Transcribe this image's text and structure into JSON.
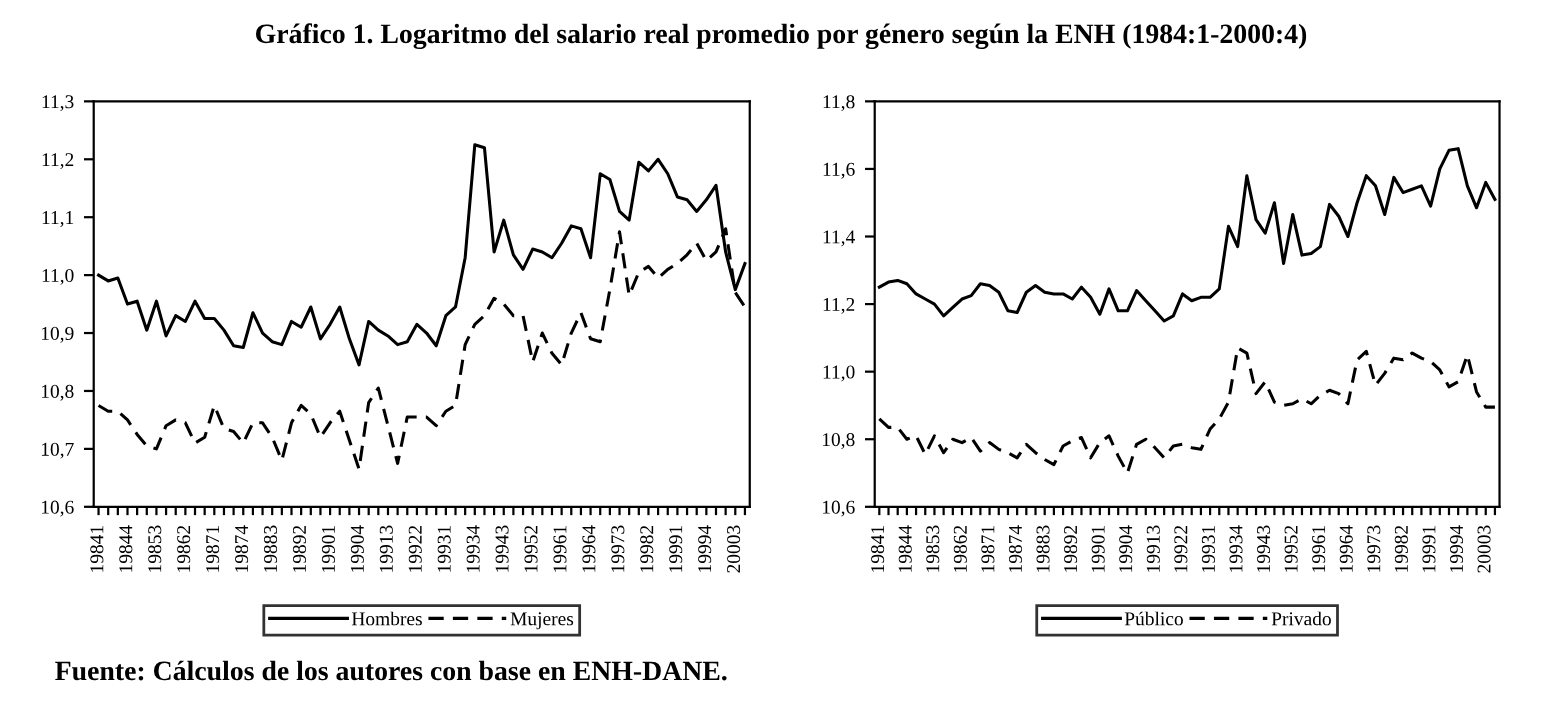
{
  "chart_data": [
    {
      "type": "line",
      "title": "Gráfico 1. Logaritmo del salario real promedio por género según la ENH (1984:1-2000:4)",
      "annotations": [
        "Fuente: Cálculos de los autores con base en ENH-DANE."
      ],
      "categories": [
        "19841",
        null,
        null,
        "19844",
        null,
        null,
        "19853",
        null,
        null,
        "19862",
        null,
        null,
        "19871",
        null,
        null,
        "19874",
        null,
        null,
        "19883",
        null,
        null,
        "19892",
        null,
        null,
        "19901",
        null,
        null,
        "19904",
        null,
        null,
        "19913",
        null,
        null,
        "19922",
        null,
        null,
        "19931",
        null,
        null,
        "19934",
        null,
        null,
        "19943",
        null,
        null,
        "19952",
        null,
        null,
        "19961",
        null,
        null,
        "19964",
        null,
        null,
        "19973",
        null,
        null,
        "19982",
        null,
        null,
        "19991",
        null,
        null,
        "19994",
        null,
        null,
        "20003",
        null
      ],
      "series": [
        {
          "name": "Hombres",
          "color": "#000000",
          "line_style": "solid",
          "values": [
            11.0,
            10.99,
            10.995,
            10.95,
            10.955,
            10.905,
            10.955,
            10.895,
            10.93,
            10.92,
            10.955,
            10.925,
            10.925,
            10.905,
            10.878,
            10.875,
            10.935,
            10.9,
            10.885,
            10.88,
            10.92,
            10.91,
            10.945,
            10.89,
            10.915,
            10.945,
            10.89,
            10.845,
            10.92,
            10.905,
            10.895,
            10.88,
            10.885,
            10.915,
            10.9,
            10.878,
            10.93,
            10.945,
            11.03,
            11.225,
            11.22,
            11.04,
            11.095,
            11.035,
            11.01,
            11.045,
            11.04,
            11.03,
            11.055,
            11.085,
            11.08,
            11.03,
            11.175,
            11.165,
            11.11,
            11.095,
            11.195,
            11.18,
            11.2,
            11.175,
            11.135,
            11.13,
            11.11,
            11.13,
            11.155,
            11.04,
            10.975,
            11.02
          ]
        },
        {
          "name": "Mujeres",
          "color": "#000000",
          "line_style": "dashed",
          "values": [
            10.775,
            10.765,
            10.765,
            10.75,
            10.725,
            10.705,
            10.7,
            10.74,
            10.75,
            10.745,
            10.71,
            10.72,
            10.775,
            10.735,
            10.73,
            10.71,
            10.745,
            10.745,
            10.72,
            10.68,
            10.745,
            10.775,
            10.76,
            10.72,
            10.745,
            10.765,
            10.715,
            10.665,
            10.78,
            10.805,
            10.74,
            10.675,
            10.755,
            10.755,
            10.755,
            10.74,
            10.765,
            10.775,
            10.88,
            10.915,
            10.93,
            10.96,
            10.95,
            10.93,
            10.93,
            10.85,
            10.9,
            10.865,
            10.845,
            10.9,
            10.935,
            10.89,
            10.885,
            10.975,
            11.075,
            10.965,
            11.005,
            11.015,
            10.995,
            11.01,
            11.02,
            11.035,
            11.055,
            11.025,
            11.04,
            11.08,
            10.97,
            10.945
          ]
        }
      ],
      "ylim": [
        10.6,
        11.3
      ],
      "yticks": [
        {
          "value": 10.6,
          "label": "10,6"
        },
        {
          "value": 10.7,
          "label": "10,7"
        },
        {
          "value": 10.8,
          "label": "10,8"
        },
        {
          "value": 10.9,
          "label": "10,9"
        },
        {
          "value": 11.0,
          "label": "11,0"
        },
        {
          "value": 11.1,
          "label": "11,1"
        },
        {
          "value": 11.2,
          "label": "11,2"
        },
        {
          "value": 11.3,
          "label": "11,3"
        }
      ],
      "legend": "bottom",
      "grid": false,
      "marker": "none"
    },
    {
      "type": "line",
      "categories": [
        "19841",
        null,
        null,
        "19844",
        null,
        null,
        "19853",
        null,
        null,
        "19862",
        null,
        null,
        "19871",
        null,
        null,
        "19874",
        null,
        null,
        "19883",
        null,
        null,
        "19892",
        null,
        null,
        "19901",
        null,
        null,
        "19904",
        null,
        null,
        "19913",
        null,
        null,
        "19922",
        null,
        null,
        "19931",
        null,
        null,
        "19934",
        null,
        null,
        "19943",
        null,
        null,
        "19952",
        null,
        null,
        "19961",
        null,
        null,
        "19964",
        null,
        null,
        "19973",
        null,
        null,
        "19982",
        null,
        null,
        "19991",
        null,
        null,
        "19994",
        null,
        null,
        "20003",
        null
      ],
      "series": [
        {
          "name": "Público",
          "color": "#000000",
          "line_style": "solid",
          "values": [
            11.25,
            11.265,
            11.27,
            11.26,
            11.23,
            11.215,
            11.2,
            11.165,
            11.19,
            11.215,
            11.225,
            11.26,
            11.255,
            11.235,
            11.18,
            11.175,
            11.235,
            11.255,
            11.235,
            11.23,
            11.23,
            11.215,
            11.25,
            11.22,
            11.17,
            11.245,
            11.18,
            11.18,
            11.24,
            11.21,
            11.18,
            11.15,
            11.165,
            11.23,
            11.21,
            11.22,
            11.22,
            11.245,
            11.43,
            11.37,
            11.58,
            11.45,
            11.41,
            11.5,
            11.32,
            11.465,
            11.345,
            11.35,
            11.37,
            11.495,
            11.46,
            11.4,
            11.5,
            11.58,
            11.55,
            11.465,
            11.575,
            11.53,
            11.54,
            11.55,
            11.49,
            11.6,
            11.655,
            11.66,
            11.55,
            11.485,
            11.56,
            11.51
          ]
        },
        {
          "name": "Privado",
          "color": "#000000",
          "line_style": "dashed",
          "values": [
            10.86,
            10.835,
            10.835,
            10.8,
            10.81,
            10.755,
            10.81,
            10.76,
            10.8,
            10.79,
            10.805,
            10.765,
            10.79,
            10.77,
            10.76,
            10.745,
            10.785,
            10.76,
            10.74,
            10.725,
            10.78,
            10.795,
            10.805,
            10.745,
            10.79,
            10.81,
            10.75,
            10.7,
            10.785,
            10.8,
            10.775,
            10.745,
            10.78,
            10.785,
            10.775,
            10.77,
            10.83,
            10.86,
            10.91,
            11.07,
            11.055,
            10.935,
            10.97,
            10.91,
            10.9,
            10.905,
            10.92,
            10.905,
            10.93,
            10.945,
            10.935,
            10.905,
            11.035,
            11.06,
            10.96,
            10.995,
            11.04,
            11.035,
            11.055,
            11.04,
            11.03,
            11.005,
            10.955,
            10.97,
            11.05,
            10.94,
            10.895,
            10.895
          ]
        }
      ],
      "ylim": [
        10.6,
        11.8
      ],
      "yticks": [
        {
          "value": 10.6,
          "label": "10,6"
        },
        {
          "value": 10.8,
          "label": "10,8"
        },
        {
          "value": 11.0,
          "label": "11,0"
        },
        {
          "value": 11.2,
          "label": "11,2"
        },
        {
          "value": 11.4,
          "label": "11,4"
        },
        {
          "value": 11.6,
          "label": "11,6"
        },
        {
          "value": 11.8,
          "label": "11,8"
        }
      ],
      "legend": "bottom",
      "grid": false,
      "marker": "none"
    }
  ]
}
